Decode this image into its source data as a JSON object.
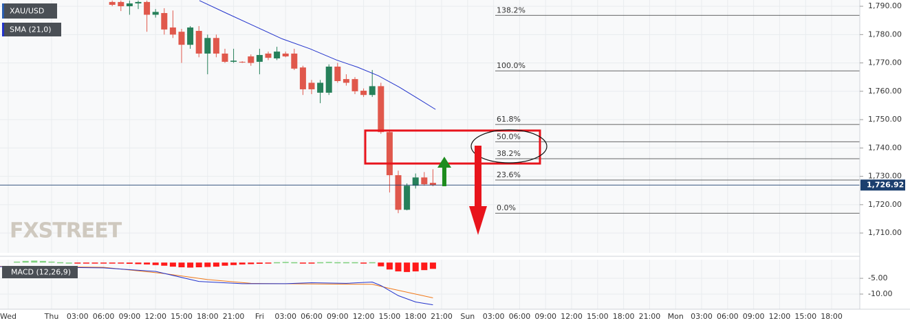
{
  "chart_data": [
    {
      "type": "candlestick",
      "title": "XAU/USD",
      "watermark": "FXSTREET",
      "up_color": "#26805a",
      "down_color": "#e0584c",
      "x": [
        7,
        8,
        9,
        10,
        11,
        12,
        13,
        14,
        15,
        16,
        17,
        18,
        19,
        20,
        21,
        22,
        23,
        24,
        25,
        26,
        27,
        28,
        29,
        30,
        31,
        32,
        33,
        34,
        35,
        36,
        37,
        38,
        39,
        40,
        41,
        42,
        43,
        44
      ],
      "open": [
        1791.5,
        1791.5,
        1790,
        1791,
        1791.5,
        1787,
        1787.6,
        1782.5,
        1781,
        1776.4,
        1781.3,
        1773.3,
        1778.8,
        1773.3,
        1770.4,
        1770.4,
        1772.3,
        1770.4,
        1773.3,
        1771.6,
        1773.3,
        1773.3,
        1768.4,
        1763,
        1759.5,
        1759.5,
        1768.7,
        1764.3,
        1764.3,
        1760.2,
        1758.7,
        1761.8,
        1745.6,
        1730.4,
        1718.2,
        1726.7,
        1729.6,
        1727.7
      ],
      "high": [
        1792,
        1792,
        1792,
        1792,
        1792,
        1789,
        1789.3,
        1788.5,
        1782,
        1783,
        1783,
        1780,
        1780,
        1775,
        1775,
        1770.6,
        1773,
        1775,
        1774,
        1775.7,
        1774,
        1775,
        1769,
        1764,
        1764,
        1769.5,
        1770,
        1766,
        1765,
        1761,
        1767.5,
        1763,
        1746,
        1732,
        1727.5,
        1731,
        1731.5,
        1732.5
      ],
      "low": [
        1790,
        1788.3,
        1787,
        1789,
        1781,
        1786,
        1780,
        1778.8,
        1770,
        1775,
        1772,
        1766,
        1772,
        1770,
        1770,
        1770,
        1769,
        1766,
        1771,
        1771,
        1772,
        1767.5,
        1758.7,
        1759,
        1755.8,
        1758.7,
        1763,
        1762,
        1759,
        1758,
        1758,
        1745,
        1724.3,
        1717,
        1718,
        1725.7,
        1726.7,
        1726.5
      ],
      "close": [
        1790.5,
        1790,
        1791,
        1791.5,
        1787,
        1788,
        1781.8,
        1780,
        1776.4,
        1782.5,
        1773.3,
        1778.8,
        1773.3,
        1770.4,
        1770.8,
        1770.2,
        1770,
        1772.8,
        1771.8,
        1774,
        1772.3,
        1768,
        1760.7,
        1760.7,
        1763,
        1768.7,
        1763.6,
        1763,
        1760,
        1758.7,
        1761.8,
        1745.6,
        1730.4,
        1718.2,
        1726.7,
        1729.6,
        1727.2,
        1726.9
      ],
      "sma": {
        "name": "SMA (21,0)",
        "color": "#2233cc",
        "x": [
          17.06,
          20.2,
          23.4,
          26.6,
          29.8,
          32.9,
          35.3,
          37.7,
          40.1,
          42.5,
          44.3
        ],
        "values": [
          1792,
          1787.5,
          1783,
          1778.5,
          1775,
          1771,
          1768.5,
          1765.5,
          1761.5,
          1757,
          1753.6
        ]
      },
      "last_price": {
        "value": 1726.92,
        "label": "1,726.92"
      },
      "fib_levels": [
        {
          "value": 1786.8,
          "label": "138.2%"
        },
        {
          "value": 1767.2,
          "label": "100.0%"
        },
        {
          "value": 1748.3,
          "label": "61.8%"
        },
        {
          "value": 1742.2,
          "label": "50.0%"
        },
        {
          "value": 1736.2,
          "label": "38.2%"
        },
        {
          "value": 1728.7,
          "label": "23.6%"
        },
        {
          "value": 1717.0,
          "label": "0.0%"
        }
      ],
      "xlim": [
        -5.95,
        93.25
      ],
      "xticks": [
        {
          "value": -5,
          "label": "Wed"
        },
        {
          "value": 0,
          "label": "Thu"
        },
        {
          "value": 3,
          "label": "03:00"
        },
        {
          "value": 6,
          "label": "06:00"
        },
        {
          "value": 9,
          "label": "09:00"
        },
        {
          "value": 12,
          "label": "12:00"
        },
        {
          "value": 15,
          "label": "15:00"
        },
        {
          "value": 18,
          "label": "18:00"
        },
        {
          "value": 21,
          "label": "21:00"
        },
        {
          "value": 24,
          "label": "Fri"
        },
        {
          "value": 27,
          "label": "03:00"
        },
        {
          "value": 30,
          "label": "06:00"
        },
        {
          "value": 33,
          "label": "09:00"
        },
        {
          "value": 36,
          "label": "12:00"
        },
        {
          "value": 39,
          "label": "15:00"
        },
        {
          "value": 42,
          "label": "18:00"
        },
        {
          "value": 45,
          "label": "21:00"
        },
        {
          "value": 48,
          "label": "Sun"
        },
        {
          "value": 51,
          "label": "03:00"
        },
        {
          "value": 54,
          "label": "06:00"
        },
        {
          "value": 57,
          "label": "09:00"
        },
        {
          "value": 60,
          "label": "12:00"
        },
        {
          "value": 63,
          "label": "15:00"
        },
        {
          "value": 66,
          "label": "18:00"
        },
        {
          "value": 69,
          "label": "21:00"
        },
        {
          "value": 72,
          "label": "Mon"
        },
        {
          "value": 75,
          "label": "03:00"
        },
        {
          "value": 78,
          "label": "06:00"
        },
        {
          "value": 81,
          "label": "09:00"
        },
        {
          "value": 84,
          "label": "12:00"
        },
        {
          "value": 87,
          "label": "15:00"
        },
        {
          "value": 90,
          "label": "18:00"
        }
      ],
      "ylim": [
        1703,
        1792.2
      ],
      "yticks": [
        {
          "value": 1710,
          "label": "1,710.00"
        },
        {
          "value": 1720,
          "label": "1,720.00"
        },
        {
          "value": 1730,
          "label": "1,730.00"
        },
        {
          "value": 1740,
          "label": "1,740.00"
        },
        {
          "value": 1750,
          "label": "1,750.00"
        },
        {
          "value": 1760,
          "label": "1,760.00"
        },
        {
          "value": 1770,
          "label": "1,770.00"
        },
        {
          "value": 1780,
          "label": "1,780.00"
        },
        {
          "value": 1790,
          "label": "1,790.00"
        }
      ],
      "grid": true
    },
    {
      "type": "macd",
      "title": "MACD (12,26,9)",
      "histogram": {
        "up_color": "#7ed07e",
        "down_color": "#ff1a1a",
        "x": [
          -4,
          -3,
          -2,
          -1,
          0,
          1,
          2,
          3,
          4,
          5,
          6,
          7,
          8,
          9,
          10,
          11,
          12,
          13,
          14,
          15,
          16,
          17,
          18,
          19,
          20,
          21,
          22,
          23,
          24,
          25,
          26,
          27,
          28,
          29,
          30,
          31,
          32,
          33,
          34,
          35,
          36,
          37,
          38,
          39,
          40,
          41,
          42,
          43,
          44
        ],
        "values": [
          0.3,
          0.5,
          0.6,
          0.5,
          0.3,
          0.1,
          0.0,
          -0.1,
          -0.1,
          -0.2,
          -0.2,
          -0.2,
          -0.3,
          -0.4,
          -0.5,
          -0.6,
          -0.8,
          -1.0,
          -1.3,
          -1.5,
          -1.6,
          -1.5,
          -1.4,
          -1.3,
          -1.0,
          -0.8,
          -0.6,
          -0.5,
          -0.4,
          -0.3,
          0.1,
          0.2,
          0.1,
          -0.2,
          -0.3,
          0.1,
          0.2,
          0.1,
          0.1,
          0.1,
          -0.1,
          0.1,
          -1.2,
          -2.2,
          -2.8,
          -3.0,
          -2.8,
          -2.4,
          -2.0
        ]
      },
      "macd_line": {
        "color": "#2233cc",
        "x": [
          -6,
          6,
          12,
          17,
          22,
          27,
          30,
          34,
          37,
          38,
          40,
          42,
          44
        ],
        "values": [
          -1.3,
          -1.7,
          -2.8,
          -6.0,
          -6.7,
          -6.7,
          -6.4,
          -6.6,
          -6.2,
          -7.3,
          -10.5,
          -12.5,
          -13.4
        ]
      },
      "signal_line": {
        "color": "#f07818",
        "x": [
          -6,
          6,
          13,
          18,
          23,
          30,
          37,
          39,
          42,
          44
        ],
        "values": [
          -1.2,
          -1.5,
          -3.5,
          -5.4,
          -6.6,
          -6.8,
          -6.9,
          -8.2,
          -10.0,
          -11.2
        ]
      },
      "xlim": [
        -5.95,
        93.25
      ],
      "ylim": [
        -14.8,
        0.9
      ],
      "yticks": [
        {
          "value": -5,
          "label": "-5.00"
        },
        {
          "value": -10,
          "label": "-10.00"
        }
      ],
      "grid": true
    }
  ]
}
